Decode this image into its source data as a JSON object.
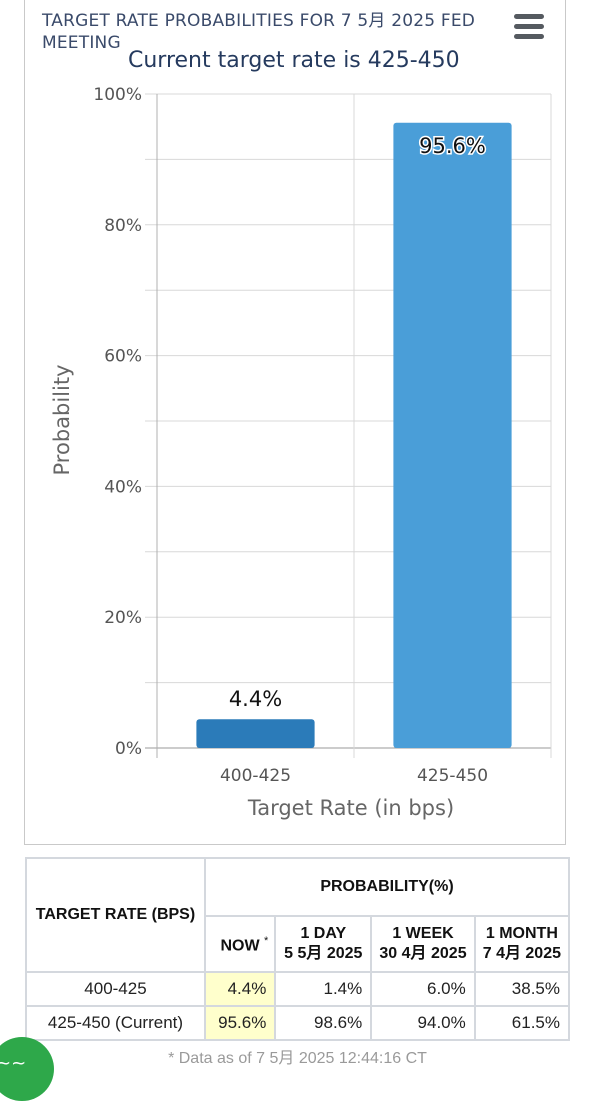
{
  "header": {
    "title": "TARGET RATE PROBABILITIES FOR 7 5月 2025 FED MEETING",
    "subtitle": "Current target rate is 425-450"
  },
  "chart_data": {
    "type": "bar",
    "categories": [
      "400-425",
      "425-450"
    ],
    "values": [
      4.4,
      95.6
    ],
    "value_labels": [
      "4.4%",
      "95.6%"
    ],
    "xlabel": "Target Rate (in bps)",
    "ylabel": "Probability",
    "ylim": [
      0,
      100
    ],
    "y_ticks": [
      "0%",
      "20%",
      "40%",
      "60%",
      "80%",
      "100%"
    ],
    "grid": true,
    "colors": {
      "bar_1": "#2b7bb9",
      "bar_2": "#4a9ed8",
      "grid": "#d8d8d8"
    }
  },
  "table": {
    "rate_header": "TARGET RATE (BPS)",
    "prob_header": "PROBABILITY(%)",
    "columns": [
      {
        "label": "NOW",
        "mark": "*"
      },
      {
        "label": "1 DAY",
        "date": "5 5月 2025"
      },
      {
        "label": "1 WEEK",
        "date": "30 4月 2025"
      },
      {
        "label": "1 MONTH",
        "date": "7 4月 2025"
      }
    ],
    "rows": [
      {
        "rate": "400-425",
        "values": [
          "4.4%",
          "1.4%",
          "6.0%",
          "38.5%"
        ]
      },
      {
        "rate": "425-450 (Current)",
        "values": [
          "95.6%",
          "98.6%",
          "94.0%",
          "61.5%"
        ]
      }
    ],
    "footnote": "* Data as of 7 5月 2025 12:44:16 CT"
  },
  "icons": {
    "menu": "hamburger-menu-icon",
    "badge": "green-badge-icon"
  }
}
